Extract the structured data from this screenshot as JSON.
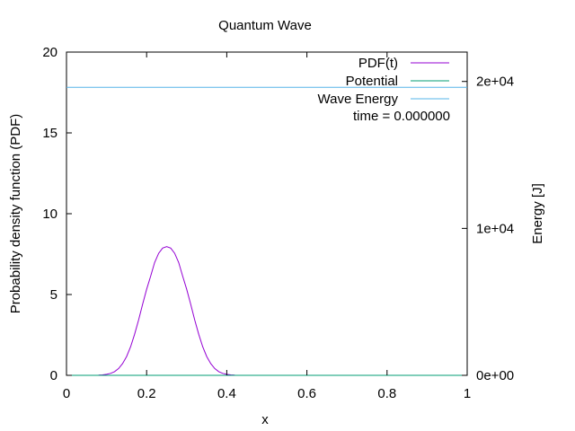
{
  "chart_data": {
    "type": "line",
    "title": "Quantum Wave",
    "xlabel": "x",
    "ylabel": "Probability density function (PDF)",
    "y2label": "Energy [J]",
    "xlim": [
      0,
      1
    ],
    "ylim": [
      0,
      20
    ],
    "y2lim": [
      0,
      22000
    ],
    "x_ticks": [
      {
        "v": 0,
        "label": "0"
      },
      {
        "v": 0.2,
        "label": "0.2"
      },
      {
        "v": 0.4,
        "label": "0.4"
      },
      {
        "v": 0.6,
        "label": "0.6"
      },
      {
        "v": 0.8,
        "label": "0.8"
      },
      {
        "v": 1,
        "label": "1"
      }
    ],
    "y_ticks": [
      {
        "v": 0,
        "label": "0"
      },
      {
        "v": 5,
        "label": "5"
      },
      {
        "v": 10,
        "label": "10"
      },
      {
        "v": 15,
        "label": "15"
      },
      {
        "v": 20,
        "label": "20"
      }
    ],
    "y2_ticks": [
      {
        "v": 0,
        "label": "0e+00"
      },
      {
        "v": 10000,
        "label": "1e+04"
      },
      {
        "v": 20000,
        "label": "2e+04"
      }
    ],
    "legend_position": "top-right",
    "grid": false,
    "series": [
      {
        "name": "PDF(t)",
        "color": "#9400d3",
        "axis": "y",
        "x": [
          0.08,
          0.09,
          0.1,
          0.11,
          0.12,
          0.13,
          0.14,
          0.15,
          0.16,
          0.17,
          0.18,
          0.19,
          0.2,
          0.21,
          0.22,
          0.23,
          0.24,
          0.25,
          0.26,
          0.27,
          0.28,
          0.29,
          0.3,
          0.31,
          0.32,
          0.33,
          0.34,
          0.35,
          0.36,
          0.37,
          0.38,
          0.39,
          0.4,
          0.41,
          0.42
        ],
        "y": [
          0.01,
          0.03,
          0.06,
          0.12,
          0.23,
          0.42,
          0.72,
          1.16,
          1.77,
          2.54,
          3.43,
          4.39,
          5.32,
          6.14,
          6.98,
          7.55,
          7.87,
          7.96,
          7.87,
          7.55,
          6.98,
          6.14,
          5.32,
          4.39,
          3.43,
          2.54,
          1.77,
          1.16,
          0.72,
          0.42,
          0.23,
          0.12,
          0.06,
          0.03,
          0.01
        ]
      },
      {
        "name": "Potential",
        "color": "#009e73",
        "axis": "y2",
        "x": [
          0,
          1
        ],
        "y": [
          0,
          0
        ]
      },
      {
        "name": "Wave Energy",
        "color": "#56b4e9",
        "axis": "y2",
        "x": [
          0,
          1
        ],
        "y": [
          19600,
          19600
        ]
      }
    ],
    "annotation": "time = 0.000000"
  }
}
